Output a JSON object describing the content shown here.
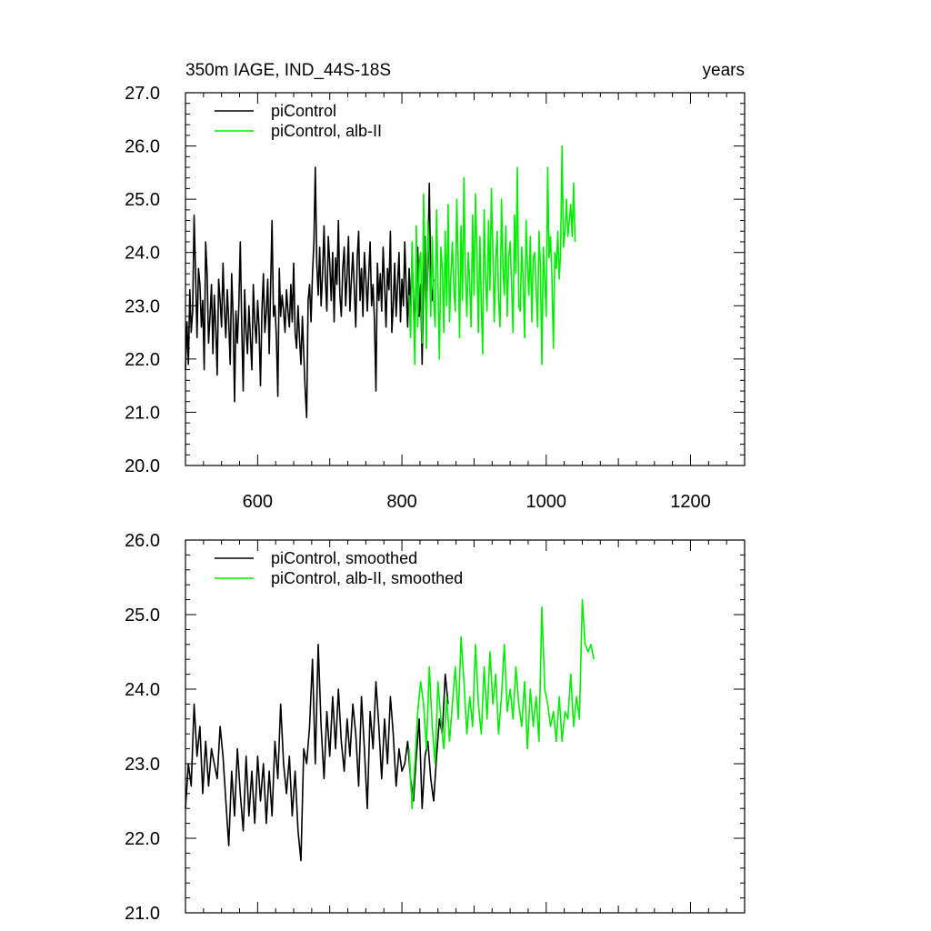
{
  "figure": {
    "title_left": "350m IAGE, IND_44S-18S",
    "title_right": "years"
  },
  "chart_data": [
    {
      "type": "line",
      "title": "350m IAGE, IND_44S-18S",
      "right_title": "years",
      "xlim": [
        500,
        1275
      ],
      "ylim": [
        20.0,
        27.0
      ],
      "x_ticks": [
        600,
        800,
        1000,
        1200
      ],
      "x_tick_labels": [
        "600",
        "800",
        "1000",
        "1200"
      ],
      "y_ticks": [
        20.0,
        21.0,
        22.0,
        23.0,
        24.0,
        25.0,
        26.0,
        27.0
      ],
      "y_tick_labels": [
        "20.0",
        "21.0",
        "22.0",
        "23.0",
        "24.0",
        "25.0",
        "26.0",
        "27.0"
      ],
      "grid": false,
      "legend_position": "top-left",
      "series": [
        {
          "name": "piControl",
          "color": "#000000",
          "x_start": 500,
          "x_step": 2,
          "values": [
            21.8,
            22.7,
            21.9,
            23.3,
            22.5,
            22.9,
            24.7,
            23.6,
            22.4,
            23.7,
            23.4,
            22.6,
            23.1,
            21.8,
            24.2,
            23.6,
            22.3,
            22.8,
            23.4,
            22.1,
            23.2,
            22.6,
            21.7,
            23.5,
            23.1,
            22.6,
            23.8,
            22.9,
            22.4,
            23.3,
            22.7,
            21.9,
            23.6,
            22.8,
            21.2,
            22.9,
            22.3,
            23.0,
            24.2,
            22.6,
            21.4,
            23.3,
            22.5,
            22.1,
            23.0,
            22.4,
            21.8,
            23.4,
            22.7,
            22.3,
            23.1,
            22.6,
            21.5,
            22.9,
            23.6,
            22.5,
            22.9,
            23.5,
            22.1,
            23.3,
            24.6,
            22.8,
            23.0,
            22.4,
            21.3,
            23.7,
            22.8,
            23.2,
            22.9,
            22.5,
            23.3,
            22.9,
            22.6,
            23.4,
            22.7,
            23.8,
            22.5,
            22.2,
            23.0,
            22.4,
            21.9,
            22.8,
            22.1,
            21.4,
            20.9,
            23.1,
            23.4,
            22.7,
            23.6,
            24.2,
            25.6,
            23.8,
            23.2,
            24.1,
            23.0,
            23.6,
            24.5,
            23.5,
            22.9,
            24.3,
            23.8,
            23.1,
            24.0,
            22.7,
            23.9,
            23.4,
            24.6,
            23.2,
            22.8,
            23.7,
            24.1,
            23.0,
            23.6,
            24.3,
            22.9,
            23.5,
            24.0,
            23.3,
            22.6,
            23.9,
            24.4,
            23.1,
            23.7,
            22.8,
            24.0,
            23.5,
            22.9,
            23.6,
            24.2,
            23.0,
            23.4,
            22.7,
            21.4,
            23.8,
            23.1,
            23.6,
            22.9,
            24.1,
            23.4,
            22.6,
            23.7,
            23.3,
            24.4,
            22.5,
            23.0,
            23.8,
            22.8,
            23.4,
            24.0,
            22.7,
            23.5,
            23.0,
            24.2,
            23.3,
            22.6,
            23.7,
            22.9,
            23.9,
            23.2,
            22.5,
            23.6,
            24.1,
            22.8,
            23.4,
            21.9,
            23.5,
            24.3,
            22.7,
            23.8,
            25.3,
            23.4,
            23.1,
            23.5
          ]
        },
        {
          "name": "piControl, alb-II",
          "color": "#00ee00",
          "x_start": 810,
          "x_step": 2,
          "values": [
            23.2,
            22.4,
            24.2,
            23.0,
            21.9,
            24.5,
            22.6,
            23.8,
            24.0,
            22.3,
            25.1,
            23.5,
            22.2,
            24.6,
            23.9,
            22.8,
            24.3,
            23.1,
            22.6,
            24.8,
            23.4,
            22.0,
            24.1,
            23.7,
            22.5,
            24.4,
            23.0,
            24.9,
            22.7,
            23.6,
            24.2,
            23.3,
            22.9,
            25.0,
            23.8,
            22.4,
            24.5,
            23.1,
            25.4,
            23.6,
            22.8,
            24.0,
            23.4,
            22.6,
            24.7,
            23.2,
            25.1,
            23.9,
            22.5,
            24.3,
            23.0,
            22.1,
            24.8,
            23.5,
            22.9,
            24.6,
            23.3,
            25.2,
            24.0,
            22.7,
            23.8,
            24.4,
            23.1,
            22.6,
            25.0,
            23.7,
            23.2,
            24.5,
            22.8,
            23.9,
            24.2,
            23.4,
            22.5,
            24.7,
            23.6,
            25.6,
            23.0,
            22.9,
            24.1,
            23.5,
            22.4,
            24.6,
            23.8,
            23.2,
            24.3,
            22.7,
            23.9,
            24.0,
            23.3,
            22.6,
            24.4,
            23.7,
            21.9,
            24.1,
            23.5,
            22.8,
            25.6,
            23.9,
            24.3,
            23.5,
            22.2,
            24.0,
            23.7,
            24.4,
            23.5,
            24.0,
            26.0,
            24.1,
            24.4,
            25.0,
            24.3,
            24.6,
            24.9,
            24.3,
            25.3,
            24.2
          ]
        }
      ]
    },
    {
      "type": "line",
      "xlim": [
        500,
        1275
      ],
      "ylim": [
        21.0,
        26.0
      ],
      "x_ticks": [
        600,
        800,
        1000,
        1200
      ],
      "y_ticks": [
        21.0,
        22.0,
        23.0,
        24.0,
        25.0,
        26.0
      ],
      "y_tick_labels": [
        "21.0",
        "22.0",
        "23.0",
        "24.0",
        "25.0",
        "26.0"
      ],
      "grid": false,
      "legend_position": "top-left",
      "series": [
        {
          "name": "piControl, smoothed",
          "color": "#000000",
          "x_start": 500,
          "x_step": 4,
          "values": [
            22.4,
            23.0,
            22.7,
            23.8,
            23.1,
            23.5,
            22.6,
            23.3,
            22.7,
            23.2,
            23.0,
            22.8,
            23.5,
            23.1,
            22.5,
            21.9,
            22.9,
            22.3,
            23.2,
            22.6,
            22.1,
            23.1,
            22.3,
            22.9,
            22.2,
            23.1,
            22.5,
            23.0,
            22.2,
            22.9,
            22.3,
            23.3,
            22.8,
            23.8,
            23.0,
            22.6,
            23.1,
            22.3,
            22.9,
            22.1,
            21.7,
            23.2,
            23.0,
            23.5,
            24.4,
            23.0,
            24.6,
            23.5,
            22.8,
            23.7,
            23.1,
            23.9,
            23.2,
            24.0,
            23.3,
            22.9,
            23.6,
            23.1,
            23.8,
            23.4,
            22.7,
            23.9,
            23.2,
            22.4,
            23.7,
            23.2,
            24.1,
            23.5,
            22.8,
            23.6,
            23.0,
            23.9,
            23.4,
            22.7,
            23.2,
            22.9,
            23.0,
            23.3,
            22.8,
            22.5,
            23.1,
            23.6,
            22.4,
            23.1,
            23.3,
            22.8,
            22.5,
            23.1,
            23.6,
            23.4,
            24.2,
            23.8
          ]
        },
        {
          "name": "piControl, alb-II, smoothed",
          "color": "#00ee00",
          "x_start": 810,
          "x_step": 4,
          "values": [
            23.2,
            22.4,
            23.0,
            23.7,
            24.1,
            23.8,
            23.2,
            24.3,
            23.5,
            23.0,
            24.1,
            23.6,
            23.2,
            23.9,
            23.3,
            23.8,
            24.3,
            23.6,
            24.7,
            24.1,
            23.4,
            23.9,
            23.5,
            24.6,
            23.8,
            23.4,
            24.3,
            23.6,
            24.5,
            23.8,
            24.2,
            23.4,
            23.9,
            24.6,
            23.7,
            24.0,
            23.6,
            24.3,
            23.8,
            23.5,
            24.1,
            23.2,
            24.0,
            23.5,
            23.9,
            23.3,
            25.1,
            24.0,
            23.8,
            23.5,
            23.7,
            23.3,
            23.9,
            23.3,
            23.7,
            23.6,
            24.2,
            23.5,
            23.9,
            23.6,
            25.2,
            24.6,
            24.5,
            24.6,
            24.4
          ]
        }
      ]
    }
  ]
}
